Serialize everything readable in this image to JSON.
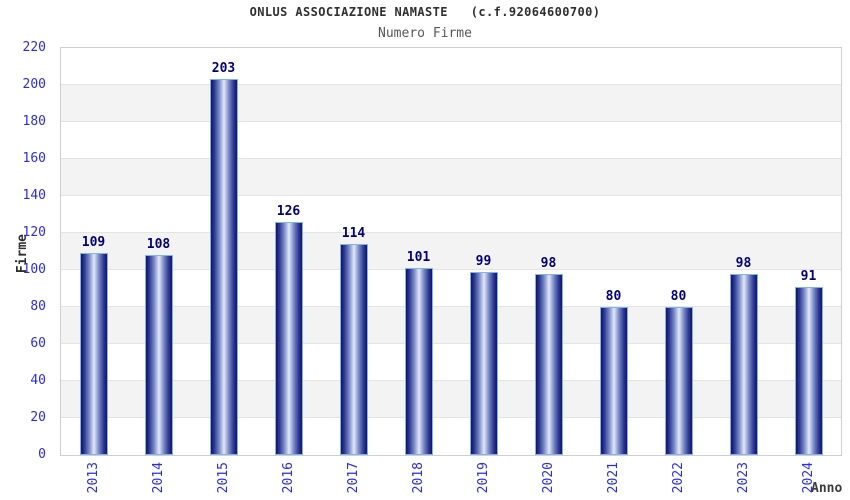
{
  "header": {
    "title": "ONLUS ASSOCIAZIONE NAMASTE   (c.f.92064600700)",
    "subtitle": "Numero Firme"
  },
  "chart_data": {
    "type": "bar",
    "title": "ONLUS ASSOCIAZIONE NAMASTE   (c.f.92064600700)",
    "subtitle": "Numero Firme",
    "categories": [
      "2013",
      "2014",
      "2015",
      "2016",
      "2017",
      "2018",
      "2019",
      "2020",
      "2021",
      "2022",
      "2023",
      "2024"
    ],
    "values": [
      109,
      108,
      203,
      126,
      114,
      101,
      99,
      98,
      80,
      80,
      98,
      91
    ],
    "xlabel": "Anno",
    "ylabel": "Firme",
    "ylim": [
      0,
      220
    ],
    "ytick_step": 20,
    "yticks": [
      0,
      20,
      40,
      60,
      80,
      100,
      120,
      140,
      160,
      180,
      200,
      220
    ],
    "grid": true,
    "legend": "none",
    "colors": {
      "bar_edge": "#131367",
      "bar_center": "#e2e8fa",
      "bar_outline": "#82b4e8",
      "value_label": "#00007d",
      "tick_label": "#2b2bee",
      "band": "#f3f3f3",
      "gridline": "#e4e4e4",
      "plot_border": "#cfcfcf",
      "title": "#303030",
      "subtitle": "#585858",
      "axis_label": "#3c3c3c"
    }
  }
}
